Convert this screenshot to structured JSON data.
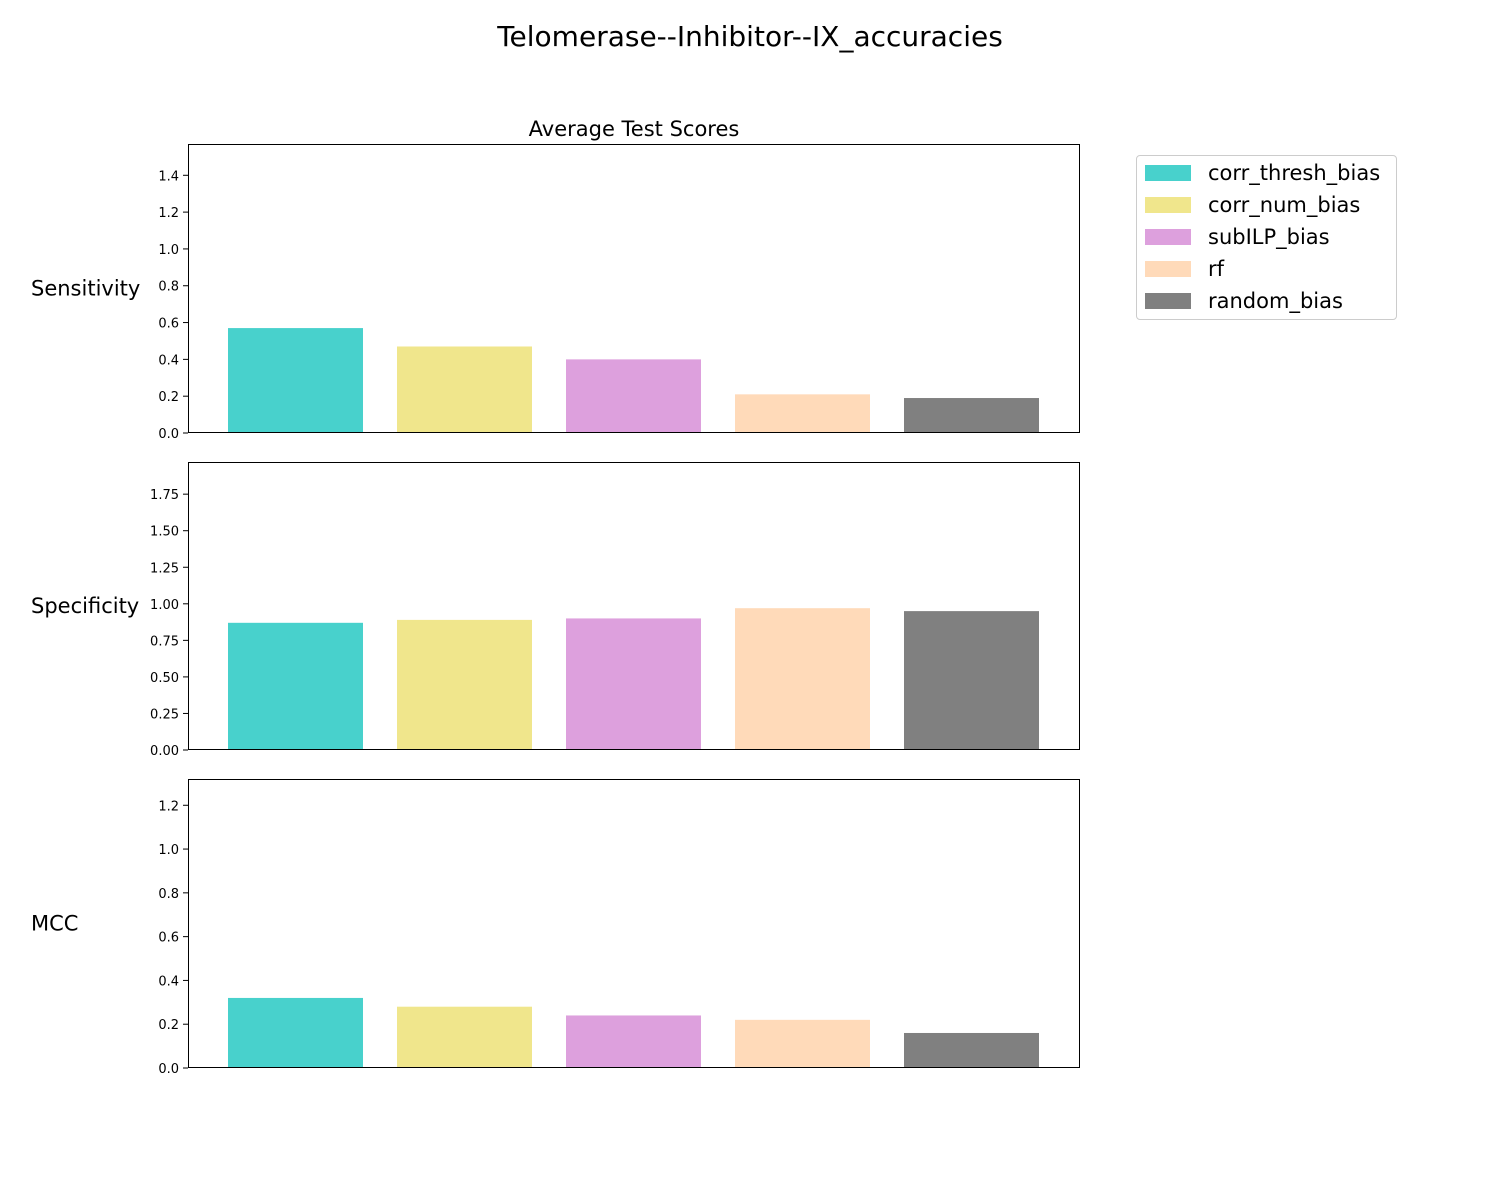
{
  "figure_title": "Telomerase--Inhibitor--IX_accuracies",
  "chart_data": [
    {
      "type": "bar",
      "title": "Average Test Scores",
      "ylabel": "Sensitivity",
      "categories": [
        "corr_thresh_bias",
        "corr_num_bias",
        "subILP_bias",
        "rf",
        "random_bias"
      ],
      "values": [
        0.57,
        0.47,
        0.4,
        0.21,
        0.19
      ],
      "ylim": [
        0,
        1.57
      ],
      "yticks": [
        "0.0",
        "0.2",
        "0.4",
        "0.6",
        "0.8",
        "1.0",
        "1.2",
        "1.4"
      ],
      "grid": false
    },
    {
      "type": "bar",
      "title": "",
      "ylabel": "Specificity",
      "categories": [
        "corr_thresh_bias",
        "corr_num_bias",
        "subILP_bias",
        "rf",
        "random_bias"
      ],
      "values": [
        0.87,
        0.89,
        0.9,
        0.97,
        0.95
      ],
      "ylim": [
        0,
        1.97
      ],
      "yticks": [
        "0.00",
        "0.25",
        "0.50",
        "0.75",
        "1.00",
        "1.25",
        "1.50",
        "1.75"
      ],
      "grid": false
    },
    {
      "type": "bar",
      "title": "",
      "ylabel": "MCC",
      "categories": [
        "corr_thresh_bias",
        "corr_num_bias",
        "subILP_bias",
        "rf",
        "random_bias"
      ],
      "values": [
        0.32,
        0.28,
        0.24,
        0.22,
        0.16
      ],
      "ylim": [
        0,
        1.32
      ],
      "yticks": [
        "0.0",
        "0.2",
        "0.4",
        "0.6",
        "0.8",
        "1.0",
        "1.2"
      ],
      "grid": false
    }
  ],
  "legend": {
    "placement": "outside-top-right",
    "items": [
      {
        "label": "corr_thresh_bias",
        "color": "#48D1CC"
      },
      {
        "label": "corr_num_bias",
        "color": "#F0E68C"
      },
      {
        "label": "subILP_bias",
        "color": "#DDA0DD"
      },
      {
        "label": "rf",
        "color": "#FFDAB9"
      },
      {
        "label": "random_bias",
        "color": "#808080"
      }
    ]
  }
}
